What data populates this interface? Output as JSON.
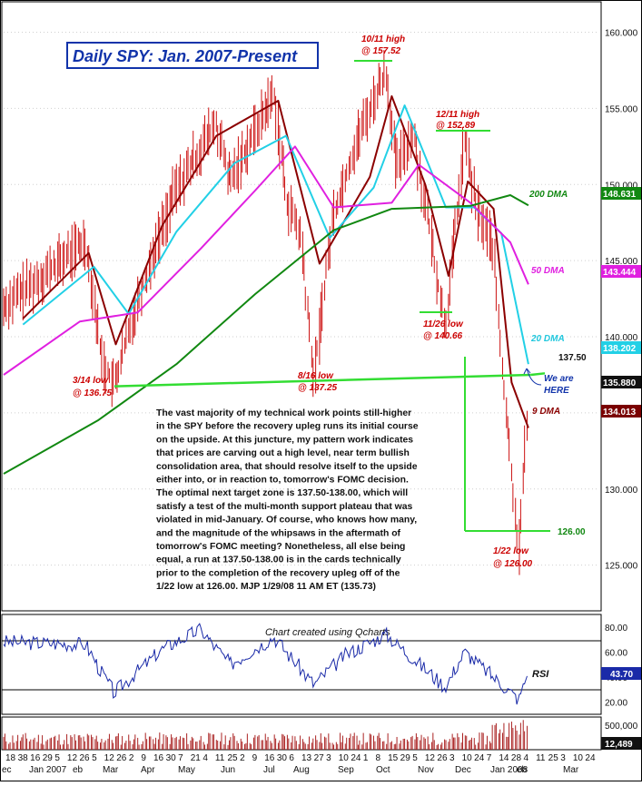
{
  "title": "Daily SPY: Jan. 2007-Present",
  "credit": "Chart created using Qcharts",
  "commentary_lines": [
    "The vast majority of my technical work points still-higher",
    "in the SPY before the recovery upleg runs its initial course",
    "on the upside. At this juncture, my pattern work indicates",
    "that prices are carving out a high level, near term bullish",
    "consolidation area, that should resolve itself to the upside",
    "either into, or in reaction to, tomorrow's FOMC decision.",
    "The optimal next target zone is 137.50-138.00, which will",
    "satisfy a test of the multi-month support plateau that was",
    "violated in mid-January. Of course, who knows how many,",
    "and the magnitude of the whipsaws in the aftermath of",
    "tomorrow's FOMC meeting? Nonetheless, all else being",
    "equal, a run at 137.50-138.00 is in the cards technically",
    "prior to the completion of the recovery upleg off of the",
    "1/22 low at 126.00.  MJP  1/29/08 11 AM ET  (135.73)"
  ],
  "annotations": {
    "high_1011_a": "10/11 high",
    "high_1011_b": "@ 157.52",
    "high_1211_a": "12/11 high",
    "high_1211_b": "@ 152.89",
    "low_314_a": "3/14 low",
    "low_314_b": "@ 136.75",
    "low_816_a": "8/16 low",
    "low_816_b": "@ 137.25",
    "low_1126_a": "11/26 low",
    "low_1126_b": "@ 140.66",
    "low_122_a": "1/22 low",
    "low_122_b": "@ 126.00",
    "level_137": "137.50",
    "level_126": "126.00",
    "we_are_a": "We are",
    "we_are_b": "HERE",
    "dma200": "200 DMA",
    "dma50": "50 DMA",
    "dma20": "20 DMA",
    "dma9": "9 DMA",
    "rsi": "RSI"
  },
  "price_badges": {
    "dma200": "148.631",
    "dma50": "143.444",
    "dma20": "138.202",
    "last": "135.880",
    "dma9": "134.013"
  },
  "rsi_badge": "43.70",
  "volume_badge": "12,489",
  "price_axis_ticks": [
    "160.000",
    "155.000",
    "150.000",
    "145.000",
    "140.000",
    "135.000",
    "130.000",
    "125.000"
  ],
  "rsi_axis_ticks": [
    "80.00",
    "60.00",
    "40.00",
    "20.00"
  ],
  "volume_axis_ticks": [
    "500,000"
  ],
  "x_day_labels": [
    "18",
    "38",
    "16",
    "29",
    "5",
    "12",
    "26",
    "5",
    "12",
    "26",
    "2",
    "9",
    "16",
    "30",
    "7",
    "21",
    "4",
    "11",
    "25",
    "2",
    "9",
    "16",
    "30",
    "6",
    "13",
    "27",
    "3",
    "10",
    "24",
    "1",
    "8",
    "15",
    "29",
    "5",
    "12",
    "26",
    "3",
    "10",
    "24",
    "7",
    "14",
    "28",
    "4",
    "11",
    "25",
    "3",
    "10",
    "24"
  ],
  "x_month_labels": [
    "ec",
    "Jan 2007",
    "eb",
    "Mar",
    "Apr",
    "May",
    "Jun",
    "Jul",
    "Aug",
    "Sep",
    "Oct",
    "Nov",
    "Dec",
    "Jan 2008",
    "eb",
    "Mar"
  ],
  "colors": {
    "candle": "#cc1111",
    "dma9": "#8b0000",
    "dma20": "#22d0e6",
    "dma50": "#e020e0",
    "dma200": "#118811",
    "support": "#33dd33",
    "annotation_red": "#cc0000",
    "annotation_blue": "#1133aa",
    "rsi_line": "#1a2aa8"
  },
  "chart_data": {
    "type": "line",
    "title": "Daily SPY: Jan. 2007-Present",
    "ylim": [
      122,
      162
    ],
    "x_range": [
      "2006-12-18",
      "2008-03-24"
    ],
    "series": [
      {
        "name": "SPY",
        "x": [
          "2006-12-18",
          "2007-01-15",
          "2007-02-20",
          "2007-03-05",
          "2007-03-14",
          "2007-04-02",
          "2007-04-30",
          "2007-06-01",
          "2007-06-12",
          "2007-07-16",
          "2007-07-26",
          "2007-08-06",
          "2007-08-16",
          "2007-08-31",
          "2007-09-19",
          "2007-10-11",
          "2007-10-19",
          "2007-11-01",
          "2007-11-12",
          "2007-11-26",
          "2007-12-11",
          "2007-12-20",
          "2008-01-02",
          "2008-01-09",
          "2008-01-22",
          "2008-01-29"
        ],
        "values": [
          142.0,
          143.8,
          146.3,
          138.5,
          136.75,
          142.6,
          149.5,
          154.0,
          150.2,
          156.0,
          149.0,
          146.5,
          137.25,
          148.0,
          153.0,
          157.52,
          151.0,
          153.5,
          148.0,
          140.66,
          152.89,
          148.5,
          146.0,
          138.0,
          126.0,
          135.73
        ]
      },
      {
        "name": "9 DMA",
        "x": [
          "2007-01-02",
          "2007-02-22",
          "2007-03-15",
          "2007-04-20",
          "2007-06-01",
          "2007-07-19",
          "2007-08-20",
          "2007-09-28",
          "2007-10-15",
          "2007-11-10",
          "2007-11-28",
          "2007-12-13",
          "2008-01-02",
          "2008-01-16",
          "2008-01-29"
        ],
        "values": [
          141.2,
          145.5,
          139.5,
          147.3,
          153.2,
          155.5,
          144.8,
          150.5,
          155.8,
          150.0,
          144.0,
          150.2,
          148.4,
          137.0,
          134.013
        ]
      },
      {
        "name": "20 DMA",
        "x": [
          "2007-01-02",
          "2007-02-26",
          "2007-03-25",
          "2007-05-01",
          "2007-06-15",
          "2007-07-25",
          "2007-08-28",
          "2007-10-01",
          "2007-10-25",
          "2007-11-26",
          "2007-12-18",
          "2008-01-08",
          "2008-01-29"
        ],
        "values": [
          140.8,
          144.6,
          141.5,
          146.9,
          151.4,
          153.2,
          146.5,
          149.8,
          155.2,
          148.5,
          148.5,
          146.8,
          138.202
        ]
      },
      {
        "name": "50 DMA",
        "x": [
          "2006-12-18",
          "2007-02-15",
          "2007-04-01",
          "2007-05-20",
          "2007-07-01",
          "2007-08-01",
          "2007-08-31",
          "2007-10-15",
          "2007-11-05",
          "2007-12-15",
          "2008-01-15",
          "2008-01-29"
        ],
        "values": [
          137.5,
          141.0,
          141.6,
          145.8,
          149.6,
          152.5,
          148.5,
          148.8,
          151.3,
          148.8,
          146.2,
          143.444
        ]
      },
      {
        "name": "200 DMA",
        "x": [
          "2006-12-18",
          "2007-03-01",
          "2007-05-01",
          "2007-07-01",
          "2007-08-31",
          "2007-10-15",
          "2007-12-15",
          "2008-01-15",
          "2008-01-29"
        ],
        "values": [
          131.0,
          134.5,
          138.2,
          142.8,
          147.0,
          148.4,
          148.6,
          149.3,
          148.631
        ]
      },
      {
        "name": "Support",
        "x": [
          "2007-03-14",
          "2008-01-31"
        ],
        "values": [
          136.75,
          137.5
        ]
      }
    ],
    "rsi": {
      "ylim": [
        10,
        90
      ],
      "levels": [
        70,
        30
      ],
      "x": [
        "2006-12-18",
        "2007-02-20",
        "2007-03-14",
        "2007-04-20",
        "2007-05-20",
        "2007-06-12",
        "2007-07-16",
        "2007-08-16",
        "2007-09-10",
        "2007-10-11",
        "2007-11-26",
        "2007-12-11",
        "2008-01-22",
        "2008-01-29"
      ],
      "values": [
        68,
        66,
        27,
        62,
        78,
        50,
        72,
        34,
        58,
        74,
        32,
        60,
        22,
        43.7
      ]
    },
    "volume": {
      "ylim": [
        0,
        600000
      ],
      "note": "daily volume bars, max near 500,000 in Jan 2008"
    }
  }
}
